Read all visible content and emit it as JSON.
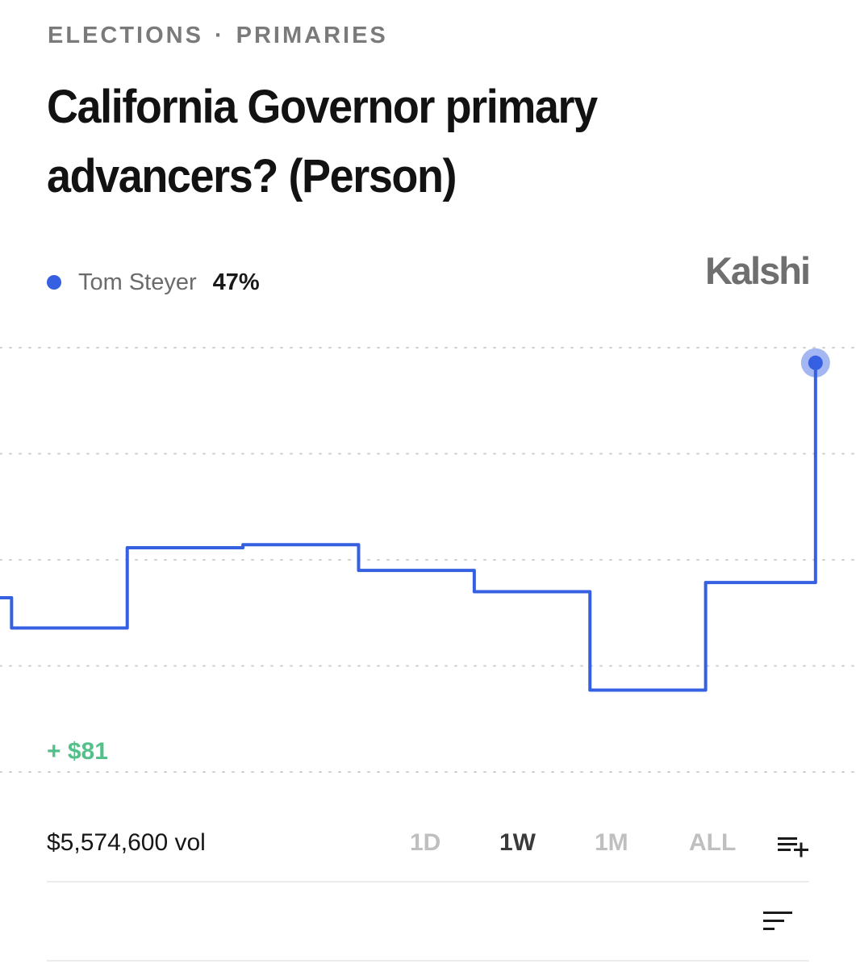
{
  "header": {
    "breadcrumb": [
      "ELECTIONS",
      "PRIMARIES"
    ],
    "breadcrumb_separator": "·",
    "title": "California Governor primary advancers? (Person)"
  },
  "legend": {
    "name": "Tom Steyer",
    "value": "47%",
    "color": "#3560e2"
  },
  "brand": "Kalshi",
  "gain_label": "+ $81",
  "volume_label": "$5,574,600 vol",
  "range_tabs": {
    "items": [
      "1D",
      "1W",
      "1M",
      "ALL"
    ],
    "selected": "1W"
  },
  "icons": {
    "list_add": "playlist-add-icon",
    "sort": "sort-icon"
  },
  "colors": {
    "line": "#3560e2",
    "gain": "#53c08a",
    "grid": "#cfcfcf"
  },
  "chart_data": {
    "type": "line",
    "interpolation": "step",
    "series": [
      {
        "name": "Tom Steyer",
        "x": [
          0,
          1,
          11,
          21,
          31,
          41,
          51,
          61,
          70.5
        ],
        "values": [
          31.5,
          29.5,
          34.8,
          35.0,
          33.3,
          31.9,
          25.4,
          32.5,
          47
        ]
      }
    ],
    "xlim": [
      0,
      74
    ],
    "ylim": [
      20,
      48
    ],
    "grid": true,
    "legend_position": "top-left"
  }
}
